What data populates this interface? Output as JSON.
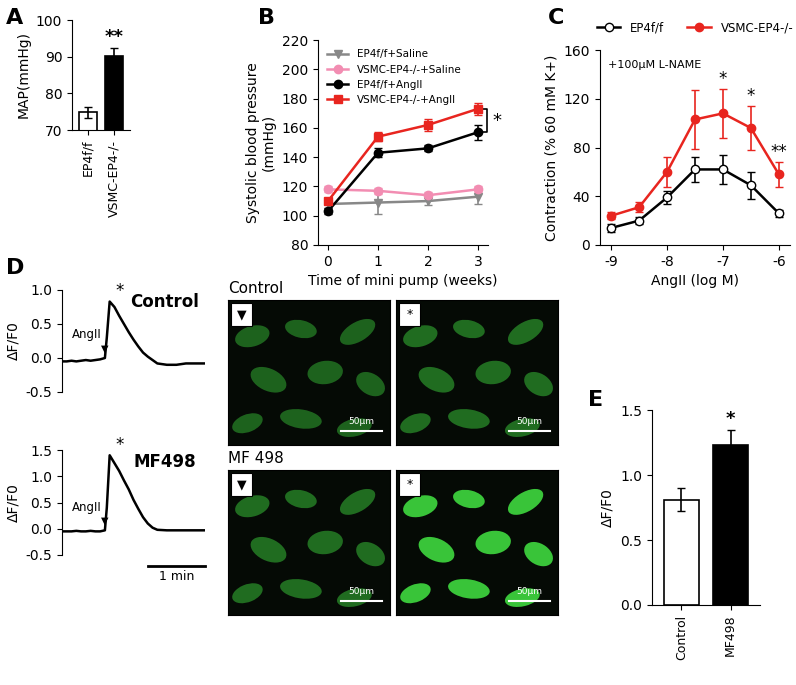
{
  "chart_data": [
    {
      "panel": "A",
      "type": "bar",
      "categories": [
        "EP4f/f",
        "VSMC-EP4-/-"
      ],
      "values": [
        74.8,
        90.2
      ],
      "errors": [
        1.5,
        2.3
      ],
      "colors": [
        "#ffffff",
        "#000000"
      ],
      "y_label": "MAP(mmHg)",
      "ylim": [
        70,
        100
      ],
      "yticks": [
        70,
        80,
        90,
        100
      ],
      "annotations": [
        {
          "text": "**",
          "category": "VSMC-EP4-/-"
        }
      ]
    },
    {
      "panel": "B",
      "type": "line",
      "x": [
        0,
        1,
        2,
        3
      ],
      "series": [
        {
          "name": "EP4f/f+Saline",
          "color": "#888888",
          "marker": "triangle_down",
          "values": [
            108,
            109,
            110,
            113
          ],
          "errors": [
            3,
            8,
            3,
            5
          ]
        },
        {
          "name": "VSMC-EP4-/-+Saline",
          "color": "#f28db2",
          "marker": "circle",
          "values": [
            118,
            117,
            114,
            118
          ],
          "errors": [
            2,
            2,
            2,
            2
          ]
        },
        {
          "name": "EP4f/f+AngII",
          "color": "#000000",
          "marker": "circle",
          "values": [
            103,
            143,
            146,
            157
          ],
          "errors": [
            2,
            3,
            2,
            5
          ]
        },
        {
          "name": "VSMC-EP4-/-+AngII",
          "color": "#e8251f",
          "marker": "square",
          "values": [
            110,
            154,
            162,
            173
          ],
          "errors": [
            2,
            3,
            4,
            4
          ]
        }
      ],
      "x_label": "Time of mini pump (weeks)",
      "y_label": "Systolic blood pressure\n(mmHg)",
      "xlim": [
        -0.2,
        3.2
      ],
      "xticks": [
        0,
        1,
        2,
        3
      ],
      "ylim": [
        80,
        220
      ],
      "yticks": [
        80,
        100,
        120,
        140,
        160,
        180,
        200,
        220
      ],
      "legend": "upper left",
      "annotations": [
        {
          "text": "*",
          "between": [
            "VSMC-EP4-/-+AngII",
            "EP4f/f+AngII"
          ]
        }
      ]
    },
    {
      "panel": "C",
      "type": "line",
      "x": [
        -9,
        -8.5,
        -8,
        -7.5,
        -7,
        -6.5,
        -6
      ],
      "series": [
        {
          "name": "EP4f/f",
          "color": "#000000",
          "marker": "open_circle",
          "values": [
            14,
            20,
            39,
            62,
            62,
            49,
            26
          ],
          "errors": [
            3,
            3,
            5,
            10,
            12,
            11,
            3
          ]
        },
        {
          "name": "VSMC-EP4-/-",
          "color": "#e8251f",
          "marker": "circle",
          "values": [
            24,
            31,
            60,
            103,
            108,
            96,
            58
          ],
          "errors": [
            3,
            4,
            12,
            24,
            20,
            18,
            10
          ]
        }
      ],
      "x_label": "AngII (log M)",
      "y_label": "Contraction (% 60 mM K+)",
      "note": "+100μM L-NAME",
      "xlim": [
        -9.2,
        -5.8
      ],
      "xticks": [
        -9,
        -8,
        -7,
        -6
      ],
      "ylim": [
        0,
        160
      ],
      "yticks": [
        0,
        40,
        80,
        120,
        160
      ],
      "legend": "upper center",
      "annotations": [
        {
          "text": "*",
          "x": -7
        },
        {
          "text": "*",
          "x": -6.5
        },
        {
          "text": "**",
          "x": -6
        }
      ]
    },
    {
      "panel": "D",
      "type": "line",
      "title": "Control",
      "x": [
        0,
        5,
        10,
        15,
        20,
        25,
        30,
        35,
        40,
        45,
        47,
        50,
        55,
        60,
        65,
        70,
        75,
        80,
        85,
        90,
        95,
        100,
        110,
        120,
        130,
        140,
        150
      ],
      "values": [
        -0.05,
        -0.05,
        -0.04,
        -0.05,
        -0.04,
        -0.03,
        -0.04,
        -0.03,
        -0.02,
        0.0,
        0.3,
        0.83,
        0.75,
        0.62,
        0.5,
        0.38,
        0.27,
        0.17,
        0.08,
        0.02,
        -0.03,
        -0.08,
        -0.1,
        -0.1,
        -0.08,
        -0.08,
        -0.08
      ],
      "color": "#000000",
      "y_label": "ΔF/F0",
      "tick_labels": "y",
      "xlim": [
        0,
        150
      ],
      "ylim": [
        -0.5,
        1.0
      ],
      "yticks": [
        {
          "value": -0.5,
          "label": "-0.5"
        },
        {
          "value": 0.0,
          "label": "0.0"
        },
        {
          "value": 0.5,
          "label": "0.5"
        },
        {
          "value": 1.0,
          "label": "1.0"
        }
      ],
      "annotations": [
        {
          "text": "AngII",
          "marker": "▼",
          "x": 45
        },
        {
          "text": "*",
          "x": 50
        }
      ]
    },
    {
      "type": "line",
      "title": "MF498",
      "x": [
        0,
        5,
        10,
        15,
        20,
        25,
        30,
        35,
        40,
        45,
        47,
        50,
        55,
        60,
        65,
        70,
        75,
        80,
        85,
        90,
        95,
        100,
        110,
        120,
        130,
        140,
        150
      ],
      "values": [
        -0.05,
        -0.05,
        -0.05,
        -0.04,
        -0.05,
        -0.05,
        -0.04,
        -0.05,
        -0.05,
        -0.03,
        0.4,
        1.4,
        1.25,
        1.1,
        0.92,
        0.75,
        0.55,
        0.38,
        0.22,
        0.1,
        0.02,
        -0.02,
        -0.03,
        -0.03,
        -0.03,
        -0.03,
        -0.03
      ],
      "color": "#000000",
      "y_label": "ΔF/F0",
      "tick_labels": "y",
      "xlim": [
        0,
        150
      ],
      "ylim": [
        -0.5,
        1.5
      ],
      "yticks": [
        {
          "value": -0.5,
          "label": "-0.5"
        },
        {
          "value": 0.0,
          "label": "0.0"
        },
        {
          "value": 0.5,
          "label": "0.5"
        },
        {
          "value": 1.0,
          "label": "1.0"
        },
        {
          "value": 1.5,
          "label": "1.5"
        }
      ],
      "scale_bar": {
        "value": 60,
        "label": "1 min"
      },
      "annotations": [
        {
          "text": "AngII",
          "marker": "▼",
          "x": 45
        },
        {
          "text": "*",
          "x": 50
        }
      ]
    },
    {
      "panel": "E",
      "type": "bar",
      "categories": [
        "Control",
        "MF498"
      ],
      "values": [
        0.81,
        1.23
      ],
      "errors": [
        0.09,
        0.12
      ],
      "colors": [
        "#ffffff",
        "#000000"
      ],
      "y_label": "ΔF/F0",
      "ylim": [
        0,
        1.5
      ],
      "yticks": [
        {
          "value": 0.0,
          "label": "0.0"
        },
        {
          "value": 0.5,
          "label": "0.5"
        },
        {
          "value": 1.0,
          "label": "1.0"
        },
        {
          "value": 1.5,
          "label": "1.5"
        }
      ],
      "annotations": [
        {
          "text": "*",
          "category": "MF498"
        }
      ]
    }
  ],
  "micrographs": {
    "groups": [
      {
        "title": "Control",
        "frames": [
          "▼",
          "*"
        ]
      },
      {
        "title": "MF 498",
        "frames": [
          "▼",
          "*"
        ]
      }
    ],
    "scale_bar_label": "50µm"
  }
}
